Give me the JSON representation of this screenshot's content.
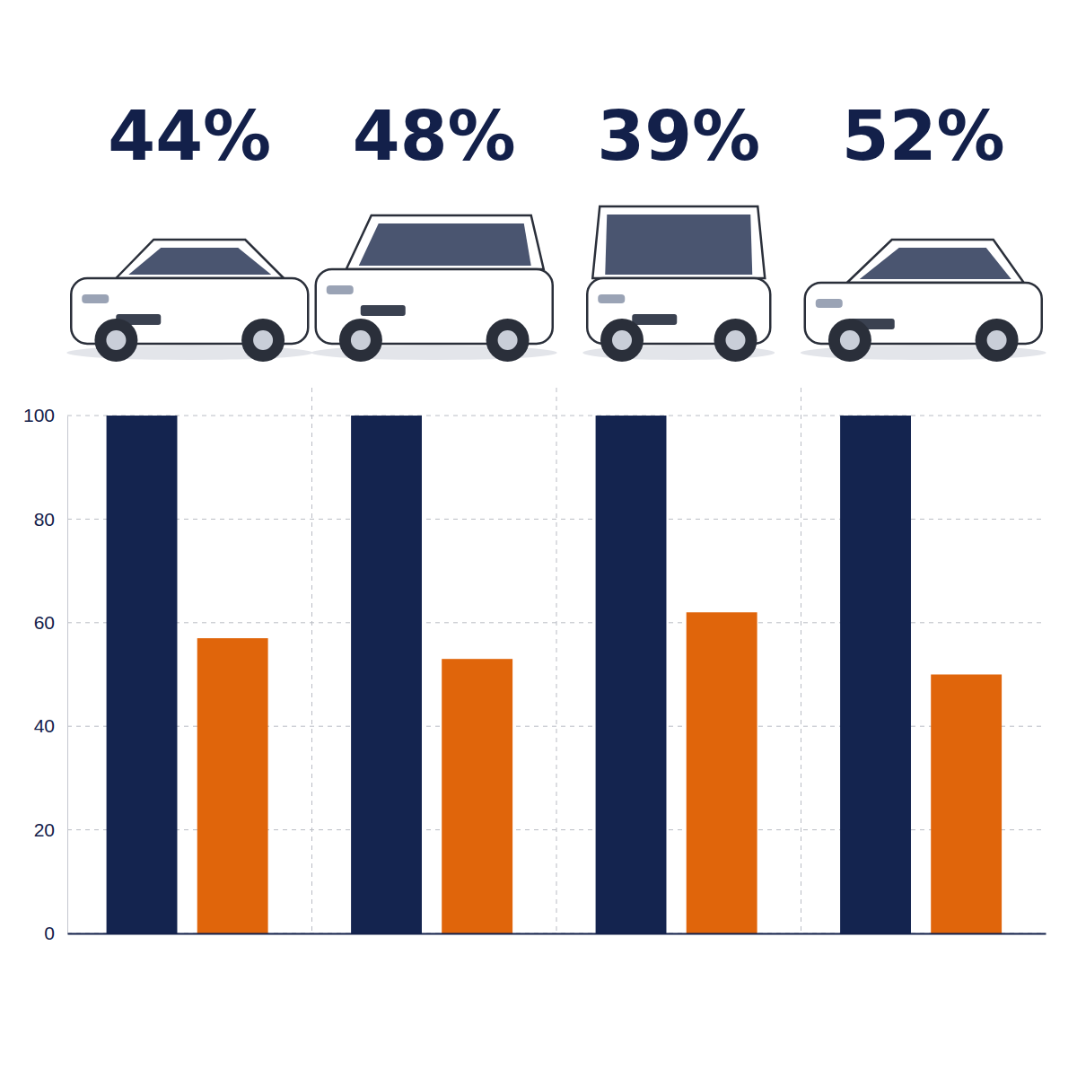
{
  "chart_data": {
    "type": "bar",
    "annotations": [
      "44%",
      "48%",
      "39%",
      "52%"
    ],
    "categories": [
      null,
      null,
      null,
      null
    ],
    "series": [
      {
        "color": "#14244f",
        "values": [
          100,
          100,
          100,
          100
        ]
      },
      {
        "color": "#e0650b",
        "values": [
          57,
          53,
          62,
          50
        ]
      }
    ],
    "ylim": [
      0,
      100
    ],
    "yticks": [
      0,
      20,
      40,
      60,
      80,
      100
    ],
    "grid": true,
    "tick_labels": "y"
  }
}
